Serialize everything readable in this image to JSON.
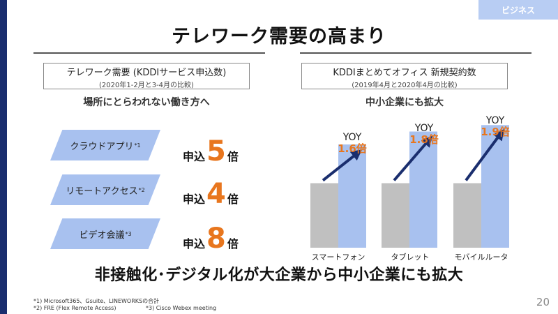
{
  "category_tab": "ビジネス",
  "title": "テレワーク需要の高まり",
  "left_panel": {
    "header_main": "テレワーク需要 (KDDIサービス申込数)",
    "header_sub": "(2020年1-2月と3-4月の比較)",
    "subheading": "場所にとらわれない働き方へ",
    "items": [
      {
        "label": "クラウドアプリ",
        "note": "*1",
        "prefix": "申込",
        "multiplier": "5",
        "suffix": "倍"
      },
      {
        "label": "リモートアクセス",
        "note": "*2",
        "prefix": "申込",
        "multiplier": "4",
        "suffix": "倍"
      },
      {
        "label": "ビデオ会議",
        "note": "*3",
        "prefix": "申込",
        "multiplier": "8",
        "suffix": "倍"
      }
    ]
  },
  "right_panel": {
    "header_main": "KDDIまとめてオフィス 新規契約数",
    "header_sub": "(2019年4月と2020年4月の比較)",
    "subheading": "中小企業にも拡大"
  },
  "chart_data": {
    "type": "bar",
    "categories": [
      "スマートフォン",
      "タブレット",
      "モバイルルータ"
    ],
    "series": [
      {
        "values": [
          1.0,
          1.0,
          1.0
        ]
      },
      {
        "values": [
          1.6,
          1.8,
          1.9
        ]
      }
    ],
    "annotations": [
      {
        "prefix": "YOY",
        "value": "1.6倍"
      },
      {
        "prefix": "YOY",
        "value": "1.8倍"
      },
      {
        "prefix": "YOY",
        "value": "1.9倍"
      }
    ],
    "colors": {
      "base": "#c0c0c0",
      "current": "#a8c1ef",
      "arrow": "#1a2e6e",
      "annotation": "#e8761e"
    },
    "ylim": [
      0,
      2.0
    ],
    "grid": false,
    "legend": "none"
  },
  "conclusion": "非接触化･デジタル化が大企業から中小企業にも拡大",
  "footnotes": {
    "f1": "*1) Microsoft365、Gsuite、LINEWORKSの合計",
    "f2": "*2) FRE (Flex Remote Access)",
    "f3": "*3) Cisco Webex meeting"
  },
  "page_number": "20"
}
